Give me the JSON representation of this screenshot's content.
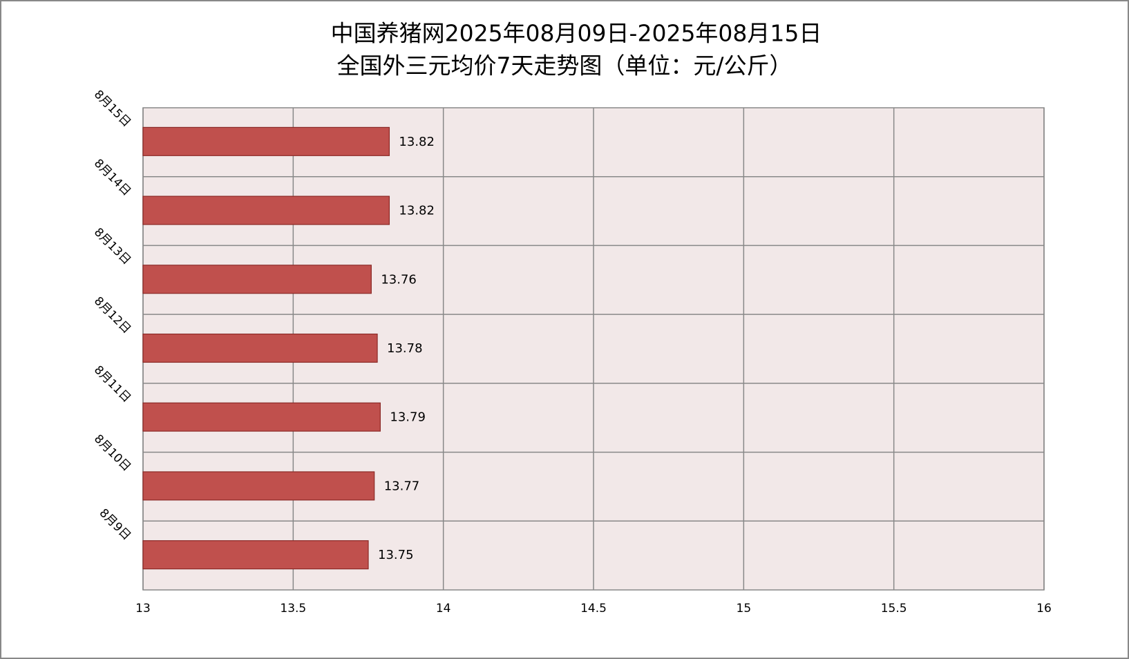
{
  "chart_data": {
    "type": "barh",
    "title": [
      "中国养猪网2025年08月09日-2025年08月15日",
      "全国外三元均价7天走势图（单位：元/公斤）"
    ],
    "categories": [
      "8月9日",
      "8月10日",
      "8月11日",
      "8月12日",
      "8月13日",
      "8月14日",
      "8月15日"
    ],
    "values": [
      13.75,
      13.77,
      13.79,
      13.78,
      13.76,
      13.82,
      13.82
    ],
    "color": "#c0504d",
    "xlim": [
      13,
      16
    ],
    "xticks": [
      13,
      13.5,
      14,
      14.5,
      15,
      15.5,
      16
    ],
    "grid": true
  }
}
